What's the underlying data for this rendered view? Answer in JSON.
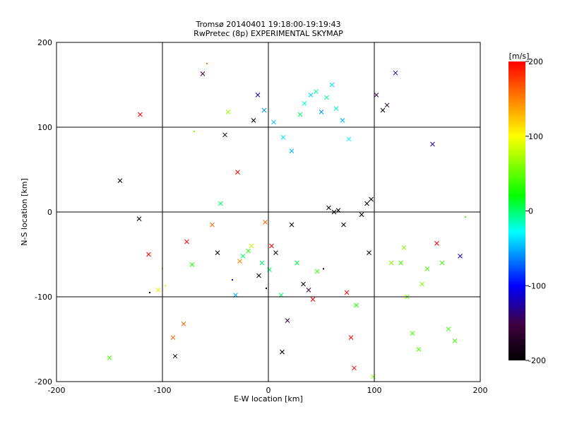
{
  "chart_data": {
    "type": "scatter",
    "title": "Tromsø 20140401 19:18:00-19:19:43",
    "subtitle": "RwPretec (8p) EXPERIMENTAL SKYMAP",
    "xlabel": "E-W location [km]",
    "ylabel": "N-S location [km]",
    "xlim": [
      -200,
      200
    ],
    "ylim": [
      -200,
      200
    ],
    "x_ticks": [
      -200,
      -100,
      0,
      100,
      200
    ],
    "y_ticks": [
      -200,
      -100,
      0,
      100,
      200
    ],
    "grid": true,
    "markers": [
      "cross",
      "dot"
    ],
    "colorbar": {
      "label": "[m/s]",
      "range": [
        -200,
        200
      ],
      "ticks": [
        200,
        100,
        0,
        -100,
        -200
      ],
      "colors": [
        "#000000",
        "#400040",
        "#0000ff",
        "#00ffff",
        "#00ff00",
        "#ffff00",
        "#ff0000"
      ]
    },
    "points": [
      [
        -150,
        -172,
        "x",
        40
      ],
      [
        -140,
        37,
        "x",
        -200
      ],
      [
        -122,
        -8,
        "x",
        -200
      ],
      [
        -121,
        115,
        "x",
        200
      ],
      [
        -113,
        -50,
        "x",
        200
      ],
      [
        -112,
        -95,
        ".",
        -200
      ],
      [
        -104,
        -92,
        "x",
        110
      ],
      [
        -100,
        -67,
        ".",
        60
      ],
      [
        -97,
        -87,
        ".",
        80
      ],
      [
        -90,
        -148,
        "x",
        160
      ],
      [
        -88,
        -170,
        "x",
        -200
      ],
      [
        -80,
        -132,
        "x",
        160
      ],
      [
        -77,
        -35,
        "x",
        200
      ],
      [
        -72,
        -62,
        "x",
        30
      ],
      [
        -70,
        95,
        ".",
        60
      ],
      [
        -62,
        163,
        "x",
        -150
      ],
      [
        -58,
        175,
        ".",
        150
      ],
      [
        -53,
        -15,
        "x",
        160
      ],
      [
        -48,
        -48,
        "x",
        -200
      ],
      [
        -45,
        10,
        "x",
        0
      ],
      [
        -41,
        91,
        "x",
        -200
      ],
      [
        -38,
        118,
        "x",
        70
      ],
      [
        -34,
        -80,
        ".",
        -100
      ],
      [
        -31,
        -98,
        "x",
        -50
      ],
      [
        -29,
        47,
        "x",
        200
      ],
      [
        -27,
        -58,
        "x",
        150
      ],
      [
        -24,
        -52,
        "x",
        0
      ],
      [
        -19,
        -46,
        "x",
        30
      ],
      [
        -16,
        -40,
        "x",
        80
      ],
      [
        -14,
        108,
        "x",
        -200
      ],
      [
        -9,
        -75,
        "x",
        -200
      ],
      [
        -6,
        -60,
        "x",
        0
      ],
      [
        -3,
        -12,
        "x",
        160
      ],
      [
        -2,
        -90,
        ".",
        -200
      ],
      [
        1,
        -68,
        "x",
        0
      ],
      [
        3,
        -40,
        "x",
        200
      ],
      [
        7,
        -48,
        "x",
        -200
      ],
      [
        12,
        -98,
        "x",
        0
      ],
      [
        13,
        -165,
        "x",
        -200
      ],
      [
        18,
        -128,
        "x",
        -150
      ],
      [
        22,
        -15,
        "x",
        -200
      ],
      [
        27,
        -60,
        "x",
        10
      ],
      [
        33,
        -85,
        "x",
        -200
      ],
      [
        38,
        -92,
        "x",
        -150
      ],
      [
        42,
        -103,
        "x",
        200
      ],
      [
        46,
        -70,
        "x",
        40
      ],
      [
        52,
        -67,
        ".",
        -200
      ],
      [
        57,
        5,
        "x",
        -200
      ],
      [
        62,
        0,
        "x",
        -200
      ],
      [
        66,
        2,
        "x",
        -200
      ],
      [
        71,
        -15,
        "x",
        -200
      ],
      [
        74,
        -95,
        "x",
        200
      ],
      [
        78,
        -148,
        "x",
        200
      ],
      [
        81,
        -184,
        "x",
        200
      ],
      [
        83,
        -110,
        "x",
        30
      ],
      [
        88,
        -3,
        "x",
        -200
      ],
      [
        93,
        10,
        "x",
        -200
      ],
      [
        95,
        -48,
        "x",
        -200
      ],
      [
        97,
        15,
        "x",
        -200
      ],
      [
        99,
        -194,
        "x",
        60
      ],
      [
        102,
        138,
        "x",
        -150
      ],
      [
        108,
        120,
        "x",
        -200
      ],
      [
        112,
        126,
        "x",
        -180
      ],
      [
        116,
        -60,
        "x",
        60
      ],
      [
        120,
        164,
        "x",
        -120
      ],
      [
        125,
        -60,
        "x",
        40
      ],
      [
        128,
        -42,
        "x",
        60
      ],
      [
        131,
        -100,
        "x",
        60
      ],
      [
        136,
        -143,
        "x",
        40
      ],
      [
        142,
        -162,
        "x",
        40
      ],
      [
        145,
        -85,
        "x",
        60
      ],
      [
        150,
        -67,
        "x",
        40
      ],
      [
        155,
        80,
        "x",
        -120
      ],
      [
        159,
        -37,
        "x",
        200
      ],
      [
        164,
        -60,
        "x",
        40
      ],
      [
        170,
        -138,
        "x",
        40
      ],
      [
        176,
        -152,
        "x",
        40
      ],
      [
        181,
        -52,
        "x",
        -120
      ],
      [
        186,
        -6,
        ".",
        40
      ],
      [
        30,
        115,
        "x",
        0
      ],
      [
        34,
        128,
        "x",
        -20
      ],
      [
        40,
        138,
        "x",
        -40
      ],
      [
        45,
        142,
        "x",
        -10
      ],
      [
        50,
        118,
        "x",
        -60
      ],
      [
        55,
        135,
        "x",
        -10
      ],
      [
        60,
        150,
        "x",
        -40
      ],
      [
        64,
        122,
        "x",
        -20
      ],
      [
        70,
        108,
        "x",
        -50
      ],
      [
        76,
        86,
        "x",
        -30
      ],
      [
        -10,
        138,
        "x",
        -120
      ],
      [
        -4,
        120,
        "x",
        -60
      ],
      [
        5,
        106,
        "x",
        -50
      ],
      [
        14,
        88,
        "x",
        -40
      ],
      [
        22,
        72,
        "x",
        -50
      ]
    ]
  }
}
